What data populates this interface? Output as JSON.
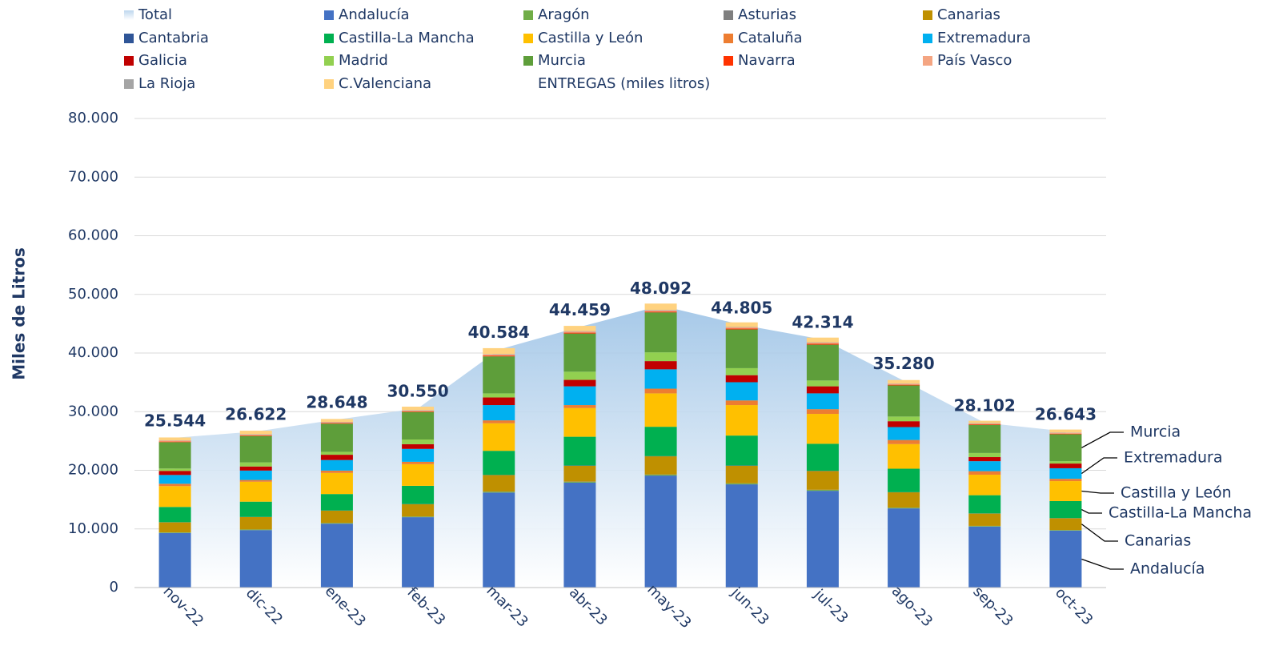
{
  "chart_data": {
    "type": "stacked-bar-area",
    "y_label": "Miles de Litros",
    "legend_note": "ENTREGAS (miles litros)",
    "categories": [
      "nov-22",
      "dic-22",
      "ene-23",
      "feb-23",
      "mar-23",
      "abr-23",
      "may-23",
      "jun-23",
      "jul-23",
      "ago-23",
      "sep-23",
      "oct-23"
    ],
    "ylim": [
      0,
      80000
    ],
    "yticks": [
      0,
      {
        "value": 10000,
        "label": "10.000"
      },
      {
        "value": 20000,
        "label": "20.000"
      },
      {
        "value": 30000,
        "label": "30.000"
      },
      {
        "value": 40000,
        "label": "40.000"
      },
      {
        "value": 50000,
        "label": "50.000"
      },
      {
        "value": 60000,
        "label": "60.000"
      },
      {
        "value": 70000,
        "label": "70.000"
      },
      {
        "value": 80000,
        "label": "80.000"
      }
    ],
    "grid": true,
    "series": [
      {
        "name": "Total",
        "type": "area",
        "color": "#bdd7ee",
        "values": [
          25544,
          26622,
          28648,
          30550,
          40584,
          44459,
          48092,
          44805,
          42314,
          35280,
          28102,
          26643
        ],
        "value_labels": [
          "25.544",
          "26.622",
          "28.648",
          "30.550",
          "40.584",
          "44.459",
          "48.092",
          "44.805",
          "42.314",
          "35.280",
          "28.102",
          "26.643"
        ]
      },
      {
        "name": "Andalucía",
        "color": "#4472c4",
        "values": [
          9300,
          9800,
          10900,
          12000,
          16200,
          17900,
          19100,
          17600,
          16500,
          13500,
          10400,
          9700
        ]
      },
      {
        "name": "Aragón",
        "color": "#70ad47",
        "values": [
          100,
          100,
          100,
          100,
          150,
          150,
          150,
          150,
          150,
          120,
          100,
          100
        ]
      },
      {
        "name": "Asturias",
        "color": "#7f7f7f",
        "values": [
          20,
          20,
          20,
          20,
          30,
          30,
          30,
          30,
          30,
          20,
          20,
          20
        ]
      },
      {
        "name": "Canarias",
        "color": "#bf9000",
        "values": [
          1700,
          2100,
          2100,
          2100,
          2800,
          2700,
          3100,
          3000,
          3200,
          2600,
          2100,
          2000
        ]
      },
      {
        "name": "Cantabria",
        "color": "#2f5597",
        "values": [
          30,
          30,
          30,
          30,
          40,
          40,
          40,
          40,
          40,
          30,
          30,
          30
        ]
      },
      {
        "name": "Castilla-La Mancha",
        "color": "#00b050",
        "values": [
          2600,
          2600,
          2800,
          3100,
          4100,
          4900,
          5000,
          5100,
          4600,
          4000,
          3100,
          2900
        ]
      },
      {
        "name": "Castilla y León",
        "color": "#ffc000",
        "values": [
          3550,
          3400,
          3600,
          3700,
          4700,
          4900,
          5700,
          5200,
          5100,
          4200,
          3500,
          3400
        ]
      },
      {
        "name": "Cataluña",
        "color": "#ed7d31",
        "values": [
          400,
          300,
          400,
          400,
          500,
          500,
          800,
          800,
          800,
          700,
          600,
          400
        ]
      },
      {
        "name": "Extremadura",
        "color": "#00b0f0",
        "values": [
          1500,
          1600,
          1800,
          2200,
          2600,
          3200,
          3300,
          3100,
          2700,
          2200,
          1700,
          1800
        ]
      },
      {
        "name": "Galicia",
        "color": "#c00000",
        "values": [
          700,
          700,
          900,
          800,
          1300,
          1100,
          1400,
          1200,
          1200,
          1000,
          700,
          800
        ]
      },
      {
        "name": "Madrid",
        "color": "#92d050",
        "values": [
          400,
          700,
          500,
          800,
          700,
          1400,
          1500,
          1200,
          1000,
          800,
          700,
          400
        ]
      },
      {
        "name": "Murcia",
        "color": "#5e9e3a",
        "values": [
          4500,
          4500,
          4800,
          4700,
          6300,
          6500,
          6800,
          6600,
          6100,
          5300,
          4800,
          4600
        ]
      },
      {
        "name": "Navarra",
        "color": "#ff3300",
        "values": [
          100,
          100,
          100,
          100,
          150,
          150,
          150,
          150,
          150,
          120,
          100,
          100
        ]
      },
      {
        "name": "País Vasco",
        "color": "#f4a582",
        "values": [
          150,
          150,
          150,
          150,
          200,
          200,
          200,
          200,
          200,
          150,
          150,
          150
        ]
      },
      {
        "name": "La Rioja",
        "color": "#a5a5a5",
        "values": [
          50,
          50,
          50,
          50,
          60,
          60,
          60,
          60,
          60,
          50,
          50,
          50
        ]
      },
      {
        "name": "C.Valenciana",
        "color": "#ffd27f",
        "values": [
          500,
          600,
          500,
          600,
          1000,
          900,
          1100,
          800,
          800,
          600,
          400,
          500
        ]
      }
    ],
    "annotations": [
      "Murcia",
      "Extremadura",
      "Castilla y León",
      "Castilla-La Mancha",
      "Canarias",
      "Andalucía"
    ]
  }
}
